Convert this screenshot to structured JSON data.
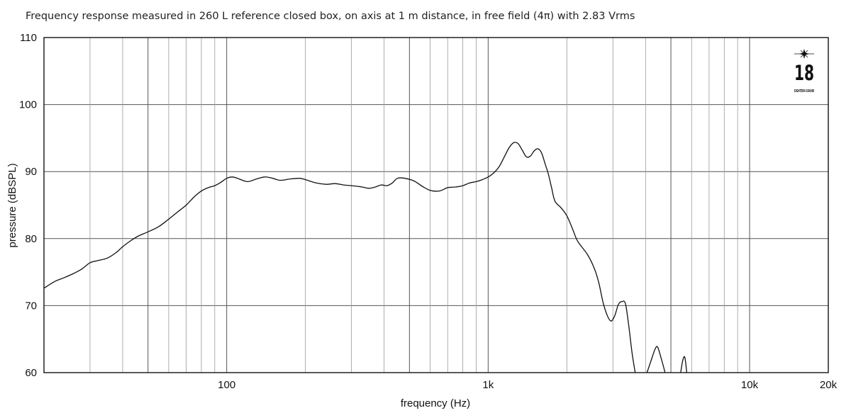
{
  "chart_data": {
    "type": "line",
    "title": "Frequency response measured in 260 L reference closed box, on axis at 1 m distance, in free field (4π) with 2.83 Vrms",
    "xlabel": "frequency (Hz)",
    "ylabel": "pressure (dBSPL)",
    "xscale": "log",
    "xlim": [
      20,
      20000
    ],
    "ylim": [
      60,
      110
    ],
    "grid": true,
    "yticks": [
      60,
      70,
      80,
      90,
      100,
      110
    ],
    "xtick_values": [
      100,
      1000,
      10000,
      20000
    ],
    "xticks": [
      "100",
      "1k",
      "10k",
      "20k"
    ],
    "series": [
      {
        "segments": [
          [
            [
              20,
              72.6
            ],
            [
              22,
              73.6
            ],
            [
              24,
              74.2
            ],
            [
              26,
              74.8
            ],
            [
              28,
              75.5
            ],
            [
              30,
              76.4
            ],
            [
              32,
              76.7
            ],
            [
              35,
              77.1
            ],
            [
              38,
              78.0
            ],
            [
              40,
              78.8
            ],
            [
              43,
              79.7
            ],
            [
              46,
              80.4
            ],
            [
              50,
              81.0
            ],
            [
              55,
              81.8
            ],
            [
              60,
              82.9
            ],
            [
              65,
              84.0
            ],
            [
              70,
              85.0
            ],
            [
              75,
              86.2
            ],
            [
              80,
              87.1
            ],
            [
              85,
              87.6
            ],
            [
              90,
              87.9
            ],
            [
              95,
              88.4
            ],
            [
              100,
              89.0
            ],
            [
              105,
              89.2
            ],
            [
              110,
              89.0
            ],
            [
              120,
              88.5
            ],
            [
              130,
              88.9
            ],
            [
              140,
              89.2
            ],
            [
              150,
              89.0
            ],
            [
              160,
              88.7
            ],
            [
              175,
              88.9
            ],
            [
              190,
              89.0
            ],
            [
              200,
              88.8
            ],
            [
              220,
              88.3
            ],
            [
              240,
              88.1
            ],
            [
              260,
              88.2
            ],
            [
              280,
              88.0
            ],
            [
              300,
              87.9
            ],
            [
              330,
              87.7
            ],
            [
              350,
              87.5
            ],
            [
              370,
              87.7
            ],
            [
              390,
              88.0
            ],
            [
              410,
              87.9
            ],
            [
              430,
              88.3
            ],
            [
              450,
              89.0
            ],
            [
              480,
              89.0
            ],
            [
              520,
              88.6
            ],
            [
              560,
              87.8
            ],
            [
              600,
              87.2
            ],
            [
              650,
              87.1
            ],
            [
              700,
              87.6
            ],
            [
              750,
              87.7
            ],
            [
              800,
              87.9
            ],
            [
              850,
              88.3
            ],
            [
              900,
              88.5
            ],
            [
              950,
              88.8
            ],
            [
              1000,
              89.2
            ],
            [
              1050,
              89.8
            ],
            [
              1100,
              90.7
            ],
            [
              1150,
              92.1
            ],
            [
              1200,
              93.5
            ],
            [
              1250,
              94.3
            ],
            [
              1300,
              94.2
            ],
            [
              1350,
              93.2
            ],
            [
              1400,
              92.2
            ],
            [
              1450,
              92.3
            ],
            [
              1500,
              93.1
            ],
            [
              1550,
              93.4
            ],
            [
              1600,
              92.8
            ],
            [
              1650,
              91.2
            ],
            [
              1700,
              89.6
            ],
            [
              1750,
              87.5
            ],
            [
              1800,
              85.6
            ],
            [
              1900,
              84.6
            ],
            [
              2000,
              83.4
            ],
            [
              2100,
              81.5
            ],
            [
              2200,
              79.6
            ],
            [
              2400,
              77.6
            ],
            [
              2550,
              75.5
            ],
            [
              2650,
              73.4
            ],
            [
              2750,
              70.5
            ],
            [
              2850,
              68.6
            ],
            [
              2950,
              67.7
            ],
            [
              3050,
              68.5
            ],
            [
              3150,
              70.2
            ],
            [
              3250,
              70.6
            ],
            [
              3350,
              70.3
            ],
            [
              3450,
              67.0
            ],
            [
              3550,
              63.0
            ],
            [
              3650,
              60.0
            ]
          ],
          [
            [
              4050,
              60.0
            ],
            [
              4200,
              61.8
            ],
            [
              4350,
              63.5
            ],
            [
              4450,
              63.8
            ],
            [
              4600,
              62.0
            ],
            [
              4750,
              60.0
            ]
          ],
          [
            [
              5450,
              60.0
            ],
            [
              5550,
              61.8
            ],
            [
              5650,
              62.3
            ],
            [
              5750,
              60.0
            ]
          ]
        ]
      }
    ],
    "logo": {
      "text_big": "18",
      "text_small": "EIGHTEEN SOUND"
    }
  }
}
